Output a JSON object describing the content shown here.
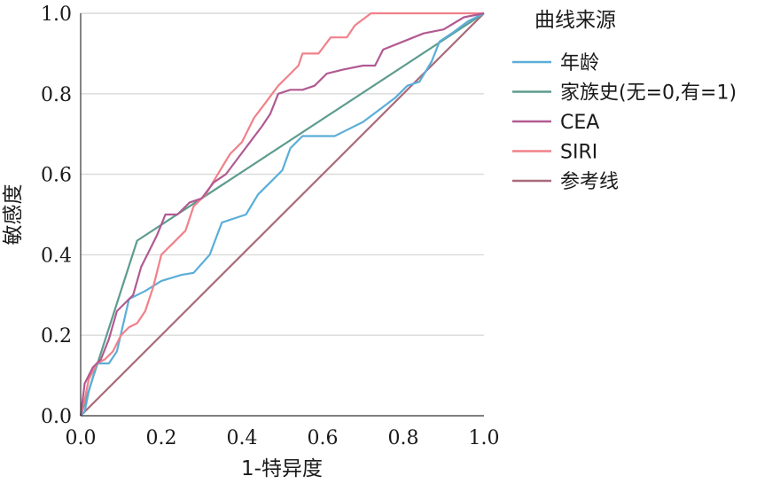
{
  "chart_data": {
    "type": "line",
    "title": "",
    "xlabel": "1-特异度",
    "ylabel": "敏感度",
    "xlim": [
      0,
      1
    ],
    "ylim": [
      0,
      1
    ],
    "xticks": [
      "0.0",
      "0.2",
      "0.4",
      "0.6",
      "0.8",
      "1.0"
    ],
    "yticks": [
      "0.0",
      "0.2",
      "0.4",
      "0.6",
      "0.8",
      "1.0"
    ],
    "grid": "horizontal",
    "legend_title": "曲线来源",
    "legend_position": "right",
    "series": [
      {
        "name": "年龄",
        "color": "#5aaed8",
        "points": [
          [
            0,
            0
          ],
          [
            0.01,
            0.01
          ],
          [
            0.02,
            0.06
          ],
          [
            0.04,
            0.13
          ],
          [
            0.07,
            0.13
          ],
          [
            0.09,
            0.16
          ],
          [
            0.12,
            0.29
          ],
          [
            0.16,
            0.31
          ],
          [
            0.2,
            0.335
          ],
          [
            0.25,
            0.35
          ],
          [
            0.28,
            0.355
          ],
          [
            0.32,
            0.4
          ],
          [
            0.35,
            0.48
          ],
          [
            0.38,
            0.49
          ],
          [
            0.41,
            0.5
          ],
          [
            0.44,
            0.55
          ],
          [
            0.47,
            0.58
          ],
          [
            0.5,
            0.61
          ],
          [
            0.52,
            0.665
          ],
          [
            0.55,
            0.695
          ],
          [
            0.6,
            0.695
          ],
          [
            0.63,
            0.695
          ],
          [
            0.66,
            0.71
          ],
          [
            0.7,
            0.73
          ],
          [
            0.74,
            0.76
          ],
          [
            0.78,
            0.79
          ],
          [
            0.81,
            0.82
          ],
          [
            0.84,
            0.83
          ],
          [
            0.87,
            0.88
          ],
          [
            0.89,
            0.93
          ],
          [
            0.92,
            0.95
          ],
          [
            0.96,
            0.98
          ],
          [
            1,
            1
          ]
        ]
      },
      {
        "name": "家族史(无=0,有=1)",
        "color": "#5e9c8e",
        "points": [
          [
            0,
            0
          ],
          [
            0.14,
            0.435
          ],
          [
            1,
            1
          ]
        ]
      },
      {
        "name": "CEA",
        "color": "#b15a92",
        "points": [
          [
            0,
            0
          ],
          [
            0.01,
            0.08
          ],
          [
            0.02,
            0.1
          ],
          [
            0.03,
            0.12
          ],
          [
            0.05,
            0.14
          ],
          [
            0.07,
            0.19
          ],
          [
            0.09,
            0.26
          ],
          [
            0.11,
            0.28
          ],
          [
            0.13,
            0.3
          ],
          [
            0.15,
            0.37
          ],
          [
            0.17,
            0.41
          ],
          [
            0.19,
            0.45
          ],
          [
            0.21,
            0.5
          ],
          [
            0.24,
            0.5
          ],
          [
            0.27,
            0.53
          ],
          [
            0.3,
            0.54
          ],
          [
            0.33,
            0.58
          ],
          [
            0.36,
            0.6
          ],
          [
            0.39,
            0.64
          ],
          [
            0.42,
            0.68
          ],
          [
            0.45,
            0.72
          ],
          [
            0.47,
            0.75
          ],
          [
            0.49,
            0.8
          ],
          [
            0.52,
            0.81
          ],
          [
            0.55,
            0.81
          ],
          [
            0.58,
            0.82
          ],
          [
            0.61,
            0.85
          ],
          [
            0.65,
            0.86
          ],
          [
            0.7,
            0.87
          ],
          [
            0.73,
            0.87
          ],
          [
            0.75,
            0.91
          ],
          [
            0.8,
            0.93
          ],
          [
            0.85,
            0.95
          ],
          [
            0.9,
            0.96
          ],
          [
            0.95,
            0.99
          ],
          [
            1,
            1
          ]
        ]
      },
      {
        "name": "SIRI",
        "color": "#f0818a",
        "points": [
          [
            0,
            0
          ],
          [
            0.01,
            0.04
          ],
          [
            0.02,
            0.09
          ],
          [
            0.04,
            0.13
          ],
          [
            0.06,
            0.14
          ],
          [
            0.08,
            0.16
          ],
          [
            0.1,
            0.2
          ],
          [
            0.12,
            0.22
          ],
          [
            0.14,
            0.23
          ],
          [
            0.16,
            0.26
          ],
          [
            0.18,
            0.32
          ],
          [
            0.2,
            0.4
          ],
          [
            0.23,
            0.43
          ],
          [
            0.26,
            0.46
          ],
          [
            0.28,
            0.52
          ],
          [
            0.31,
            0.55
          ],
          [
            0.34,
            0.6
          ],
          [
            0.37,
            0.65
          ],
          [
            0.4,
            0.68
          ],
          [
            0.43,
            0.74
          ],
          [
            0.46,
            0.78
          ],
          [
            0.49,
            0.82
          ],
          [
            0.51,
            0.84
          ],
          [
            0.54,
            0.87
          ],
          [
            0.55,
            0.9
          ],
          [
            0.59,
            0.9
          ],
          [
            0.62,
            0.94
          ],
          [
            0.66,
            0.94
          ],
          [
            0.68,
            0.97
          ],
          [
            0.72,
            1.0
          ],
          [
            1,
            1
          ]
        ]
      },
      {
        "name": "参考线",
        "color": "#a86b7a",
        "points": [
          [
            0,
            0
          ],
          [
            1,
            1
          ]
        ]
      }
    ]
  }
}
